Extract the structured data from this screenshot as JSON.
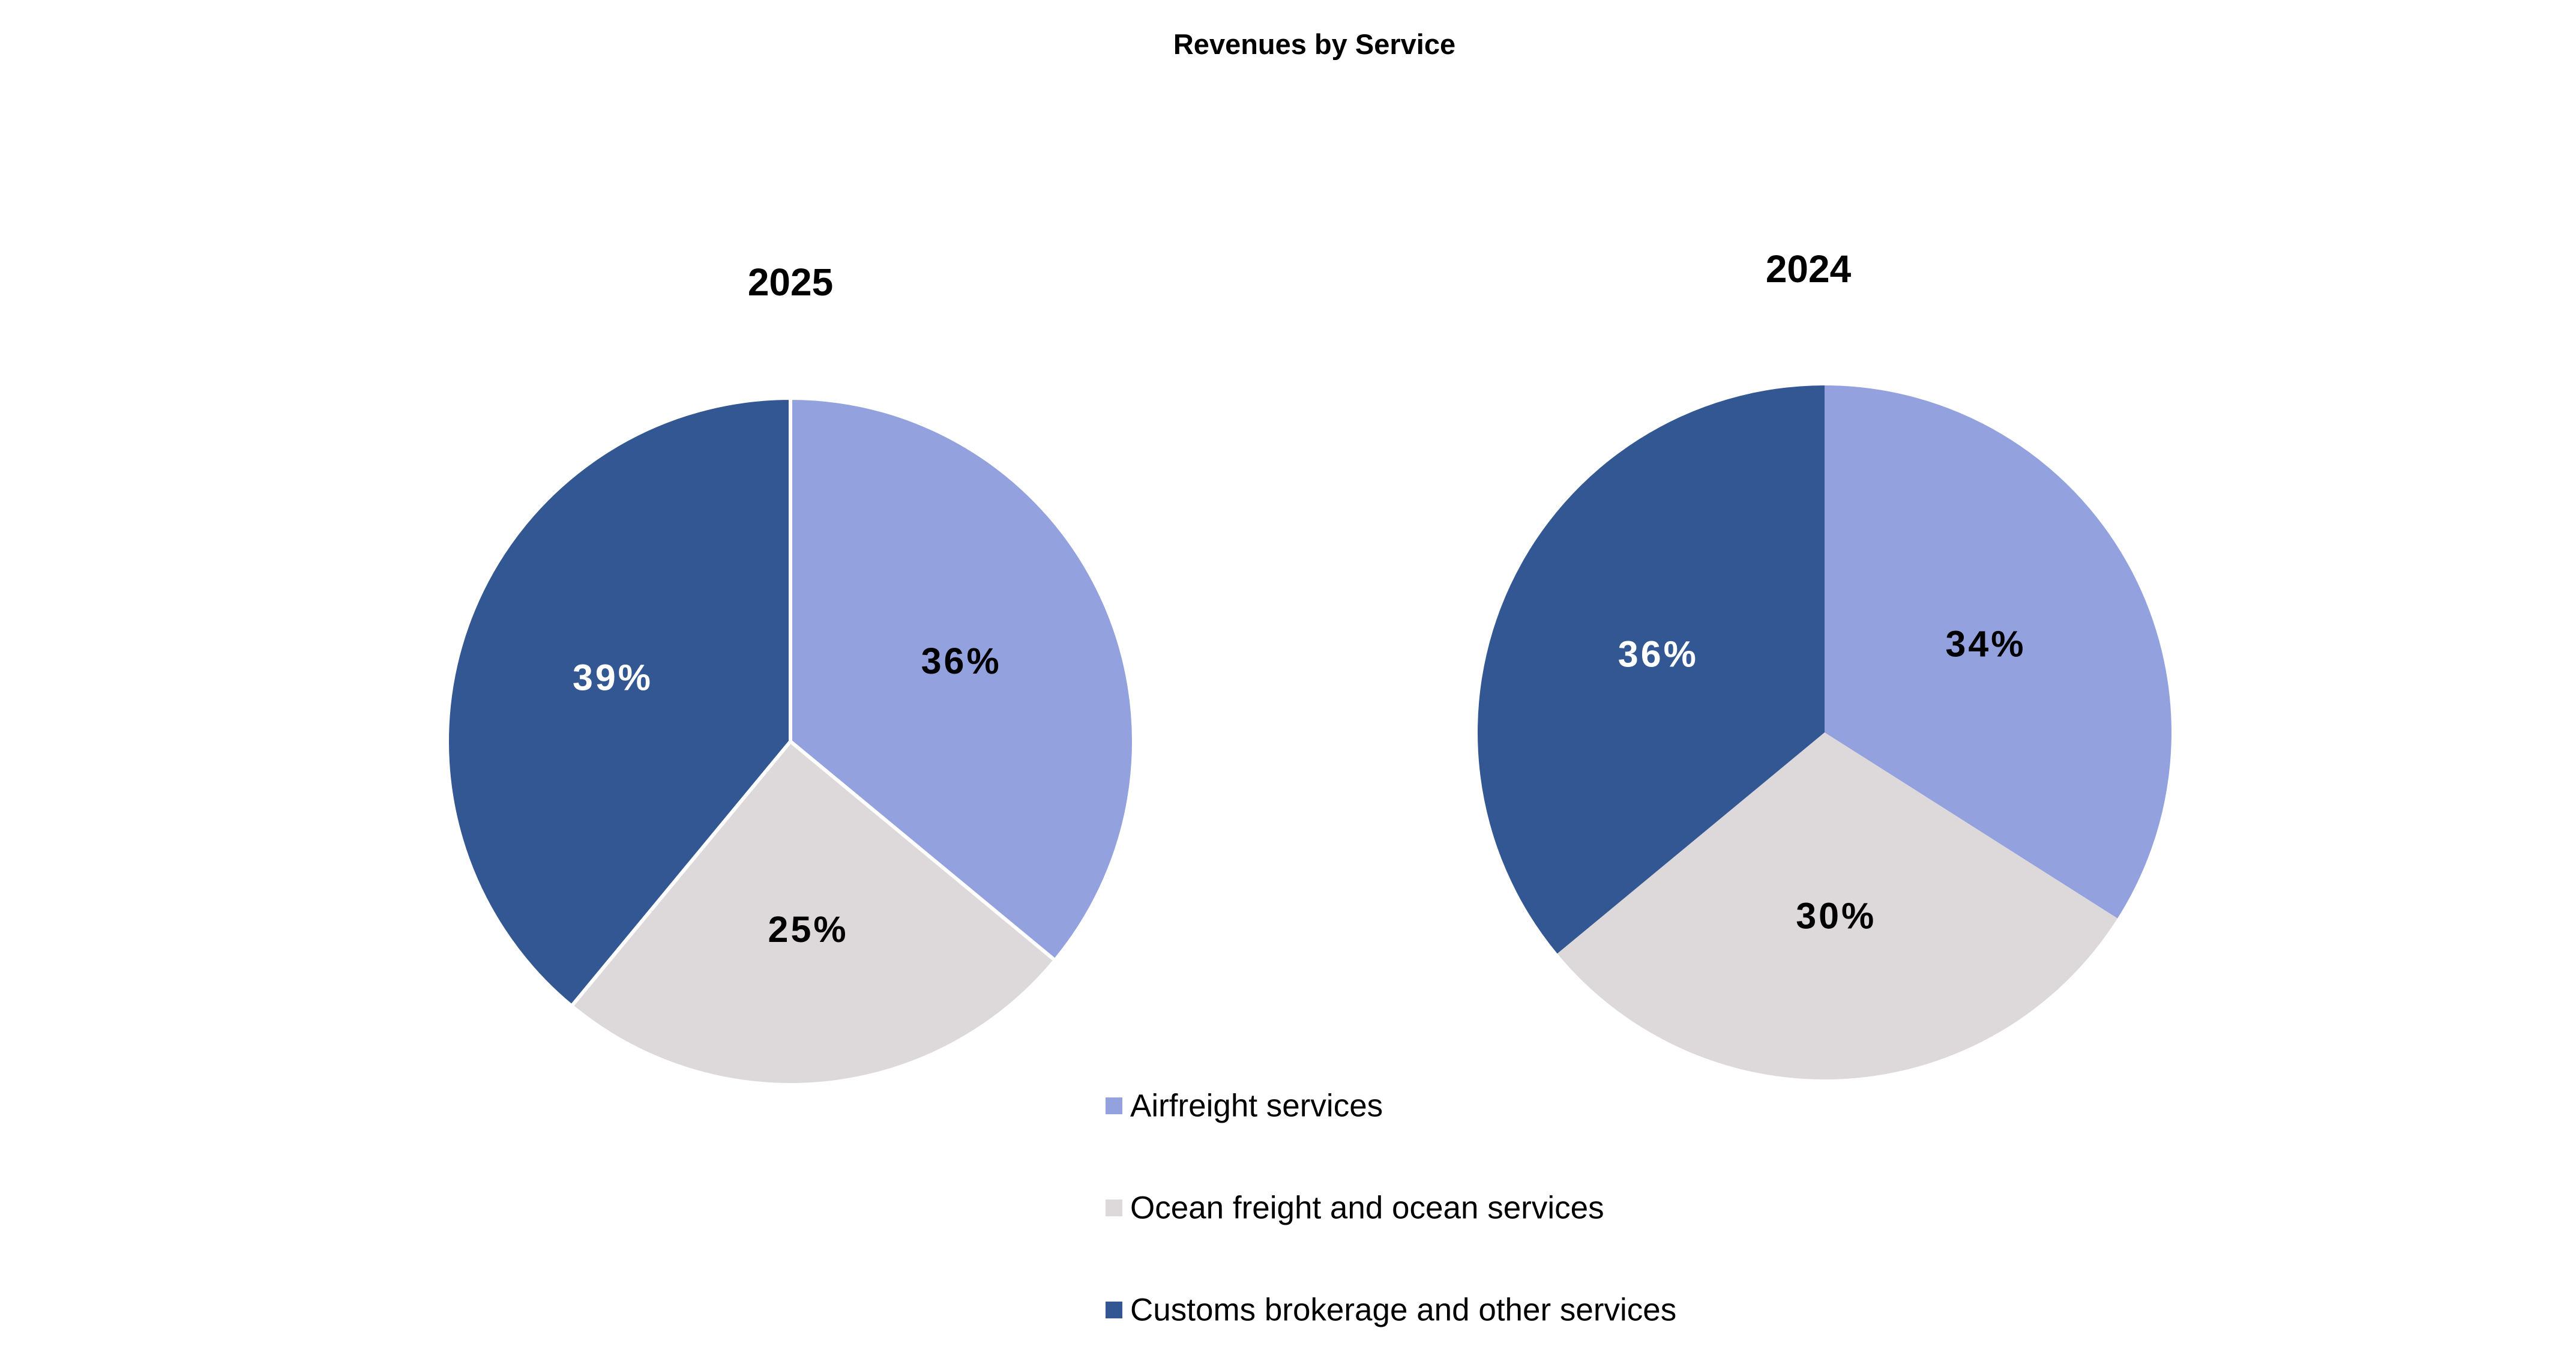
{
  "chart_data": {
    "type": "pie",
    "title": "Revenues by Service",
    "categories": [
      "Airfreight services",
      "Ocean freight and ocean services",
      "Customs brokerage and other services"
    ],
    "colors": [
      "#93A2DE",
      "#DDD8DA",
      "#325793"
    ],
    "label_colors": [
      "#000000",
      "#000000",
      "#FFFFFF"
    ],
    "legend_position": "bottom-center",
    "pies": [
      {
        "title": "2025",
        "values": [
          36,
          25,
          39
        ],
        "labels": [
          "36%",
          "25%",
          "39%"
        ]
      },
      {
        "title": "2024",
        "values": [
          34,
          30,
          36
        ],
        "labels": [
          "34%",
          "30%",
          "36%"
        ]
      }
    ]
  }
}
